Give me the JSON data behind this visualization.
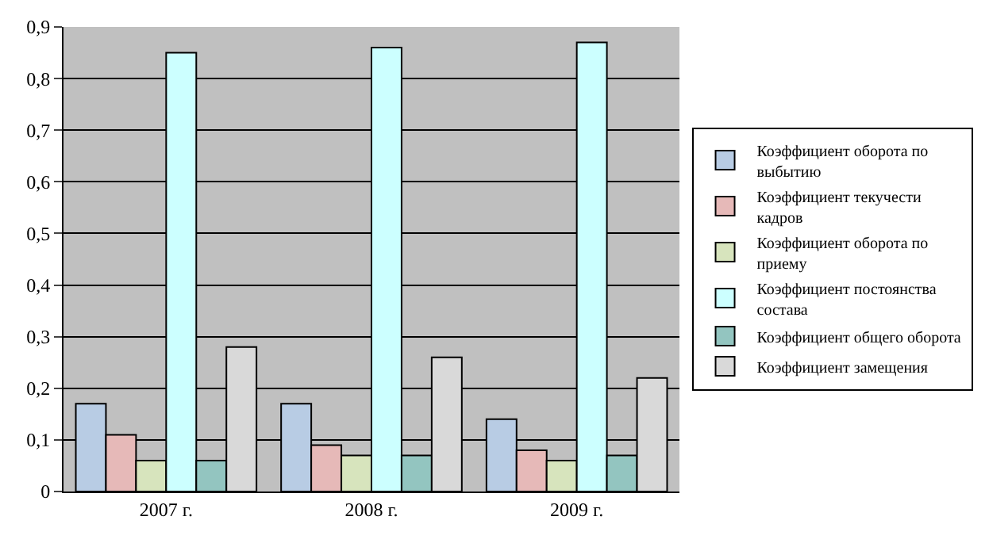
{
  "chart_data": {
    "type": "bar",
    "categories": [
      "2007 г.",
      "2008 г.",
      "2009 г."
    ],
    "series": [
      {
        "name": "Коэффициент оборота по выбытию",
        "color": "#b8cce4",
        "values": [
          0.17,
          0.17,
          0.14
        ]
      },
      {
        "name": "Коэффициент текучести кадров",
        "color": "#e6b9b8",
        "values": [
          0.11,
          0.09,
          0.08
        ]
      },
      {
        "name": "Коэффициент оборота по приему",
        "color": "#d7e4bd",
        "values": [
          0.06,
          0.07,
          0.06
        ]
      },
      {
        "name": "Коэффициент постоянства состава",
        "color": "#ccffff",
        "values": [
          0.85,
          0.86,
          0.87
        ]
      },
      {
        "name": "Коэффициент общего оборота",
        "color": "#93c5c0",
        "values": [
          0.06,
          0.07,
          0.07
        ]
      },
      {
        "name": "Коэффициент замещения",
        "color": "#d9d9d9",
        "values": [
          0.28,
          0.26,
          0.22
        ]
      }
    ],
    "ylim": [
      0,
      0.9
    ],
    "yticks": [
      0,
      {
        "value": 0.1,
        "label": "0,1"
      },
      {
        "value": 0.2,
        "label": "0,2"
      },
      {
        "value": 0.3,
        "label": "0,3"
      },
      {
        "value": 0.4,
        "label": "0,4"
      },
      {
        "value": 0.5,
        "label": "0,5"
      },
      {
        "value": 0.6,
        "label": "0,6"
      },
      {
        "value": 0.7,
        "label": "0,7"
      },
      {
        "value": 0.8,
        "label": "0,8"
      },
      {
        "value": 0.9,
        "label": "0,9"
      }
    ],
    "grid": "y",
    "legend": "right"
  }
}
